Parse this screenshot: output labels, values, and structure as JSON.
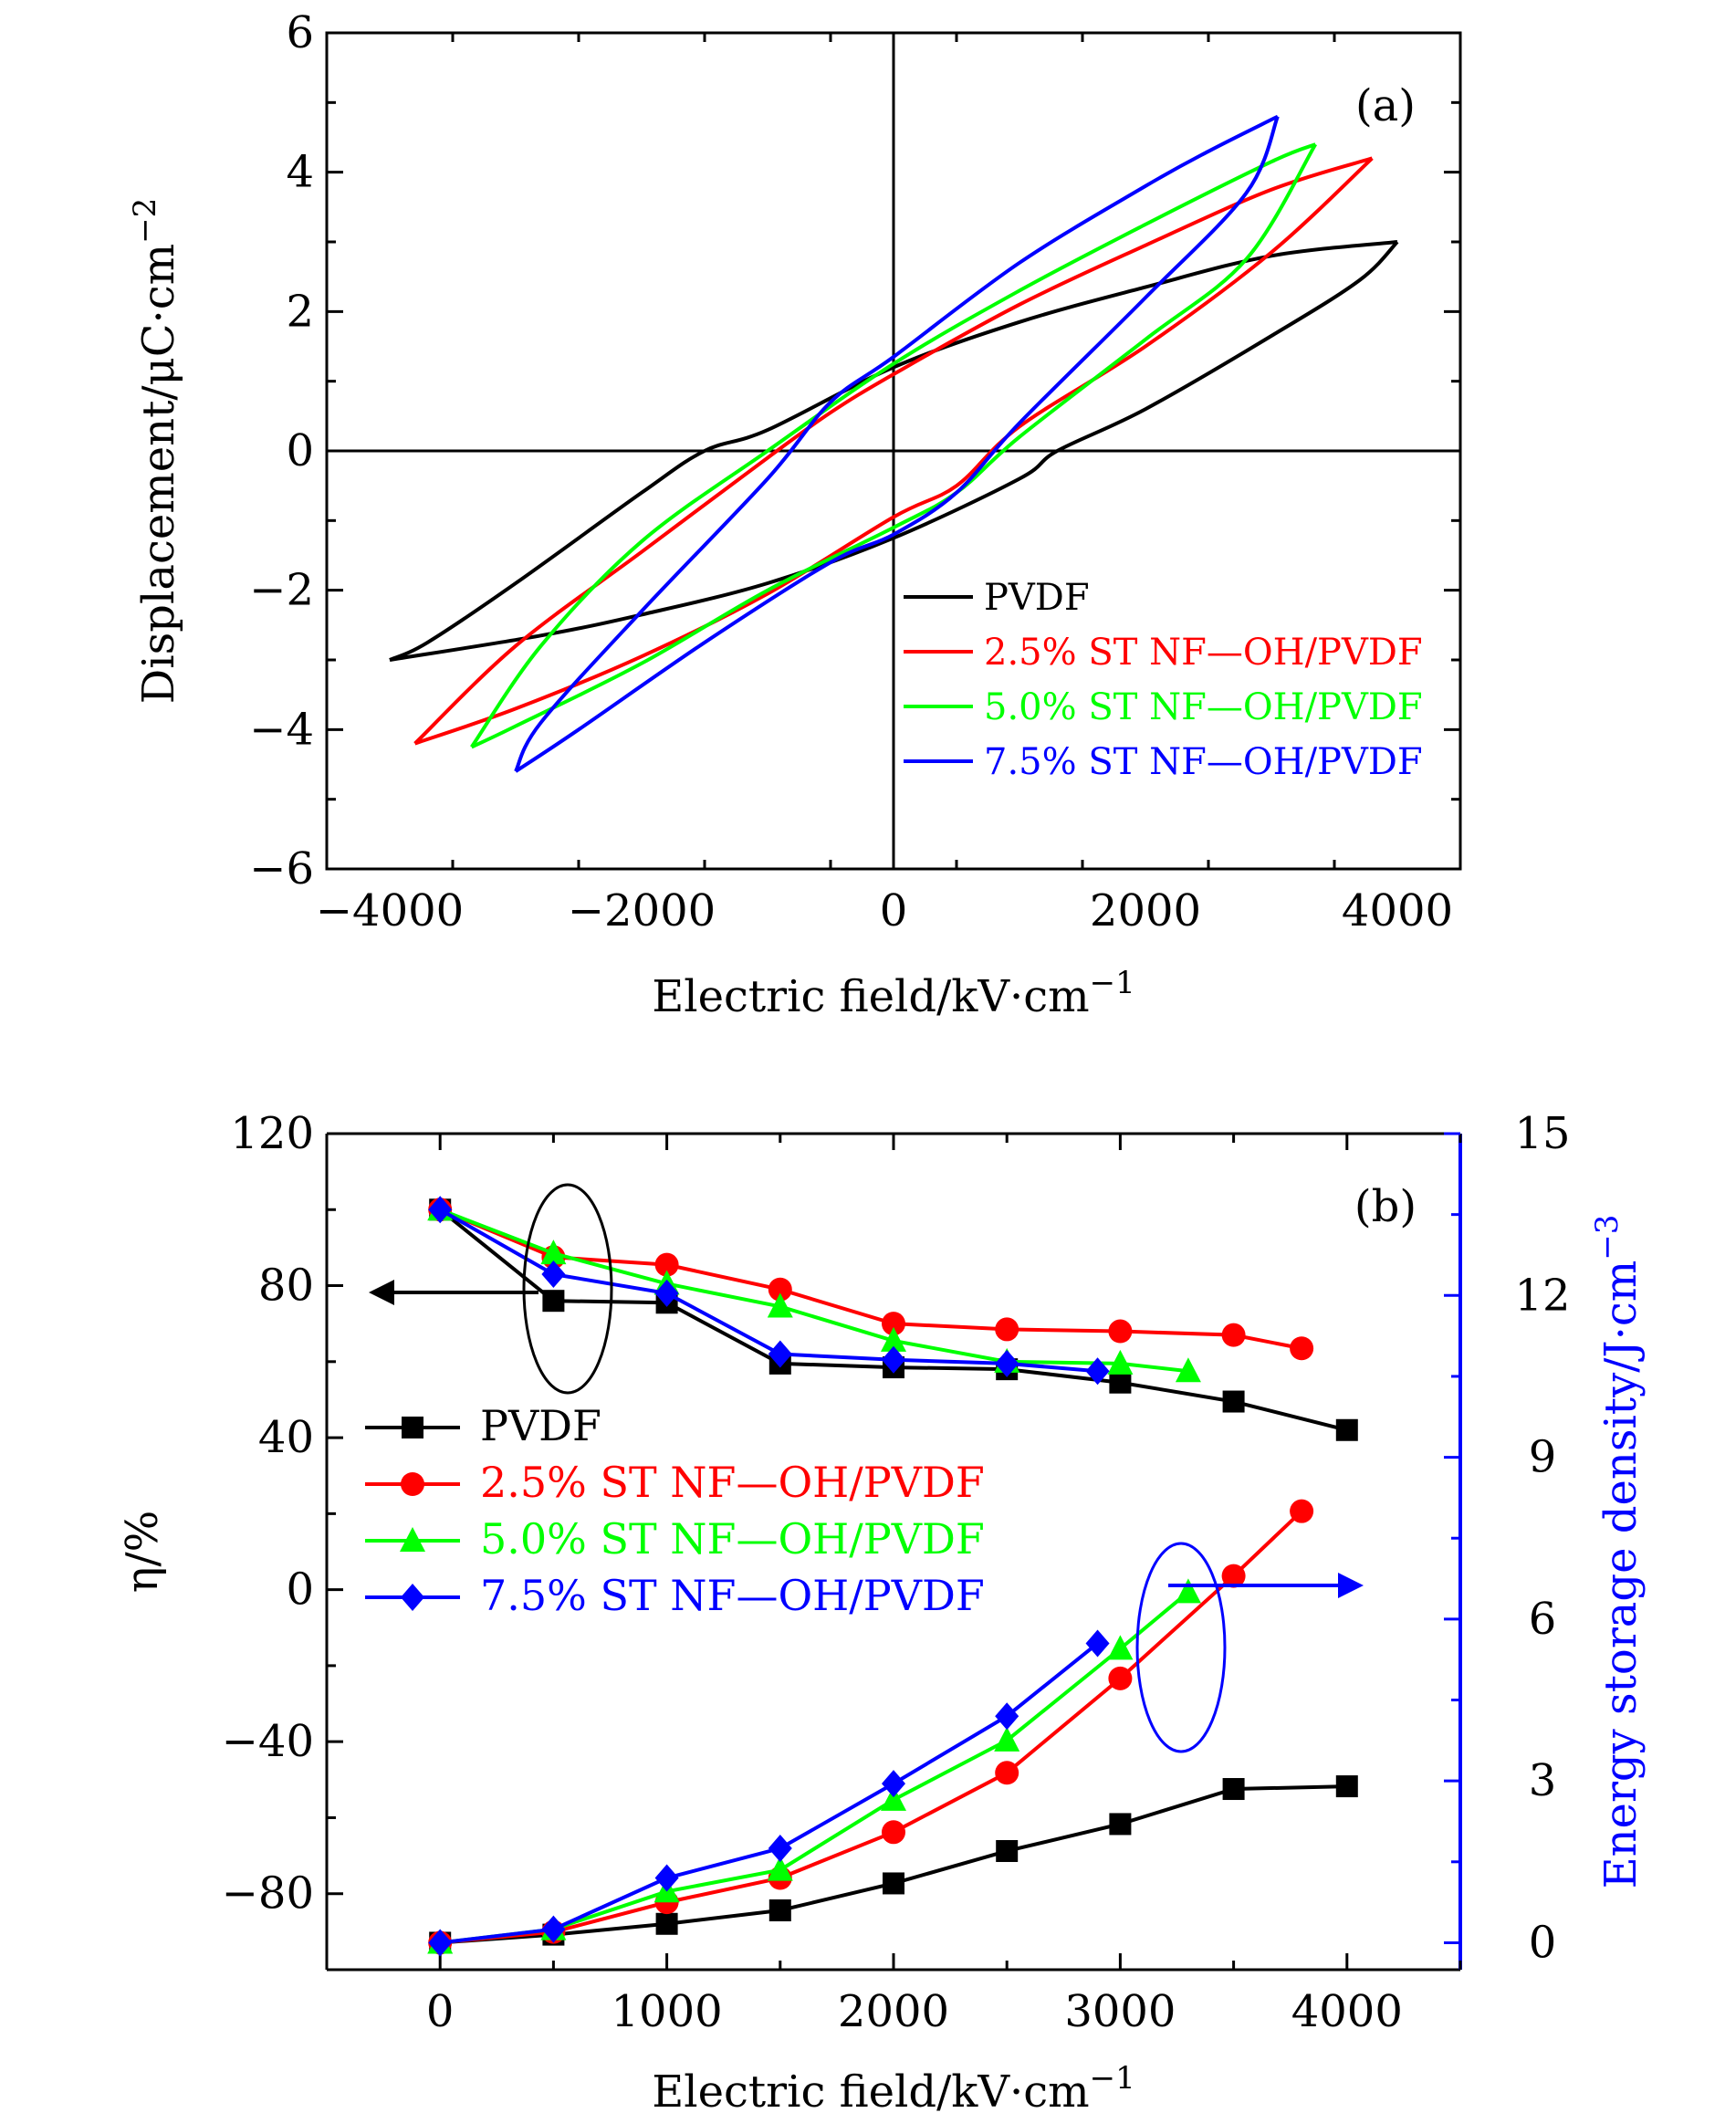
{
  "chart_data": [
    {
      "panel_label": "(a)",
      "type": "line",
      "xlabel": "Electric field/kV·cm",
      "xlabel_sup": "−1",
      "ylabel": "Displacement/μC·cm",
      "ylabel_sup": "−2",
      "xlim": [
        -4500,
        4500
      ],
      "ylim": [
        -6,
        6
      ],
      "xticks": [
        -4000,
        -2000,
        0,
        2000,
        4000
      ],
      "xtick_labels": [
        "−4000",
        "−2000",
        "0",
        "2000",
        "4000"
      ],
      "yticks": [
        -6,
        -4,
        -2,
        0,
        2,
        4,
        6
      ],
      "ytick_labels": [
        "−6",
        "−4",
        "−2",
        "0",
        "2",
        "4",
        "6"
      ],
      "legend_position": "lower-right",
      "series": [
        {
          "name": "PVDF",
          "color": "#000000",
          "upper": [
            [
              -4000,
              -3.0
            ],
            [
              -2800,
              -2.65
            ],
            [
              -2000,
              -2.35
            ],
            [
              -1000,
              -1.9
            ],
            [
              0,
              -1.25
            ],
            [
              1000,
              -0.4
            ],
            [
              1300,
              0
            ],
            [
              2000,
              0.6
            ],
            [
              3000,
              1.65
            ],
            [
              3700,
              2.45
            ],
            [
              4000,
              3.0
            ]
          ],
          "lower": [
            [
              4000,
              3.0
            ],
            [
              3000,
              2.8
            ],
            [
              2000,
              2.35
            ],
            [
              1000,
              1.85
            ],
            [
              0,
              1.2
            ],
            [
              -1000,
              0.3
            ],
            [
              -1500,
              0
            ],
            [
              -2000,
              -0.6
            ],
            [
              -3000,
              -1.9
            ],
            [
              -3700,
              -2.75
            ],
            [
              -4000,
              -3.0
            ]
          ]
        },
        {
          "name": "2.5% ST NF—OH/PVDF",
          "color": "#ff0000",
          "upper": [
            [
              -3800,
              -4.2
            ],
            [
              -3000,
              -3.7
            ],
            [
              -2000,
              -2.95
            ],
            [
              -1000,
              -2.05
            ],
            [
              0,
              -0.95
            ],
            [
              500,
              -0.5
            ],
            [
              1000,
              0.35
            ],
            [
              2000,
              1.5
            ],
            [
              3000,
              2.85
            ],
            [
              3800,
              4.2
            ]
          ],
          "lower": [
            [
              3800,
              4.2
            ],
            [
              3000,
              3.75
            ],
            [
              2000,
              2.95
            ],
            [
              1000,
              2.1
            ],
            [
              0,
              1.1
            ],
            [
              -500,
              0.55
            ],
            [
              -1000,
              -0.1
            ],
            [
              -2000,
              -1.45
            ],
            [
              -3000,
              -2.8
            ],
            [
              -3800,
              -4.2
            ]
          ]
        },
        {
          "name": "5.0% ST NF—OH/PVDF",
          "color": "#00ff00",
          "upper": [
            [
              -3350,
              -4.25
            ],
            [
              -3000,
              -3.95
            ],
            [
              -2000,
              -3.05
            ],
            [
              -1000,
              -2.0
            ],
            [
              0,
              -1.1
            ],
            [
              500,
              -0.6
            ],
            [
              1000,
              0.2
            ],
            [
              2000,
              1.6
            ],
            [
              2800,
              2.75
            ],
            [
              3350,
              4.4
            ]
          ],
          "lower": [
            [
              3350,
              4.4
            ],
            [
              3000,
              4.15
            ],
            [
              2000,
              3.25
            ],
            [
              1000,
              2.3
            ],
            [
              0,
              1.25
            ],
            [
              -1000,
              0.0
            ],
            [
              -2000,
              -1.3
            ],
            [
              -2800,
              -2.8
            ],
            [
              -3350,
              -4.25
            ]
          ]
        },
        {
          "name": "7.5% ST NF—OH/PVDF",
          "color": "#0000ff",
          "upper": [
            [
              -3000,
              -4.6
            ],
            [
              -2500,
              -4.0
            ],
            [
              -1500,
              -2.75
            ],
            [
              -500,
              -1.6
            ],
            [
              0,
              -1.2
            ],
            [
              500,
              -0.6
            ],
            [
              1000,
              0.4
            ],
            [
              2000,
              2.2
            ],
            [
              2800,
              3.7
            ],
            [
              3050,
              4.8
            ]
          ],
          "lower": [
            [
              3050,
              4.8
            ],
            [
              2500,
              4.3
            ],
            [
              2000,
              3.8
            ],
            [
              1000,
              2.7
            ],
            [
              0,
              1.35
            ],
            [
              -500,
              0.7
            ],
            [
              -1000,
              -0.4
            ],
            [
              -2000,
              -2.3
            ],
            [
              -2800,
              -3.9
            ],
            [
              -3000,
              -4.6
            ]
          ]
        }
      ]
    },
    {
      "panel_label": "(b)",
      "type": "line",
      "xlabel": "Electric field/kV·cm",
      "xlabel_sup": "−1",
      "ylabel_left": "η/%",
      "ylabel_right": "Energy storage density/J·cm",
      "ylabel_right_sup": "−3",
      "xlim": [
        -500,
        4500
      ],
      "ylim_left": [
        -100,
        120
      ],
      "ylim_right": [
        -0.5,
        15
      ],
      "xticks": [
        0,
        1000,
        2000,
        3000,
        4000
      ],
      "xtick_labels": [
        "0",
        "1000",
        "2000",
        "3000",
        "4000"
      ],
      "yticks_left": [
        -80,
        -40,
        0,
        40,
        80,
        120
      ],
      "ytick_labels_left": [
        "−80",
        "−40",
        "0",
        "40",
        "80",
        "120"
      ],
      "yticks_right": [
        0,
        3,
        6,
        9,
        12,
        15
      ],
      "ytick_labels_right": [
        "0",
        "3",
        "6",
        "9",
        "12",
        "15"
      ],
      "right_axis_color": "#0000ff",
      "legend_position": "middle-left",
      "series": [
        {
          "name": "PVDF",
          "color": "#000000",
          "marker": "square",
          "x": [
            0,
            500,
            1000,
            1500,
            2000,
            2500,
            3000,
            3500,
            4000
          ],
          "efficiency": [
            100,
            76,
            75.5,
            59.5,
            58.5,
            58,
            54.5,
            49.5,
            42
          ],
          "energy_density": [
            0,
            0.15,
            0.35,
            0.6,
            1.1,
            1.7,
            2.2,
            2.85,
            2.9
          ]
        },
        {
          "name": "2.5% ST NF—OH/PVDF",
          "color": "#ff0000",
          "marker": "circle",
          "x": [
            0,
            500,
            1000,
            1500,
            2000,
            2500,
            3000,
            3500,
            3800
          ],
          "efficiency": [
            100,
            87.5,
            85.5,
            79,
            70,
            68.5,
            68,
            67,
            63.5
          ],
          "energy_density": [
            0,
            0.2,
            0.75,
            1.2,
            2.05,
            3.15,
            4.9,
            6.8,
            8.0
          ]
        },
        {
          "name": "5.0% ST NF—OH/PVDF",
          "color": "#00ff00",
          "marker": "triangle",
          "x": [
            0,
            500,
            1000,
            1500,
            2000,
            2500,
            3000,
            3300
          ],
          "efficiency": [
            100,
            88.5,
            80.5,
            74.5,
            65.5,
            60,
            59.5,
            57.5
          ],
          "energy_density": [
            0,
            0.25,
            0.95,
            1.35,
            2.65,
            3.75,
            5.45,
            6.5
          ]
        },
        {
          "name": "7.5% ST NF—OH/PVDF",
          "color": "#0000ff",
          "marker": "diamond",
          "x": [
            0,
            500,
            1000,
            1500,
            2000,
            2500,
            2900
          ],
          "efficiency": [
            100,
            83,
            78,
            62,
            60.5,
            59.5,
            57.5
          ],
          "energy_density": [
            0,
            0.25,
            1.2,
            1.75,
            2.95,
            4.2,
            5.55
          ]
        }
      ]
    }
  ]
}
